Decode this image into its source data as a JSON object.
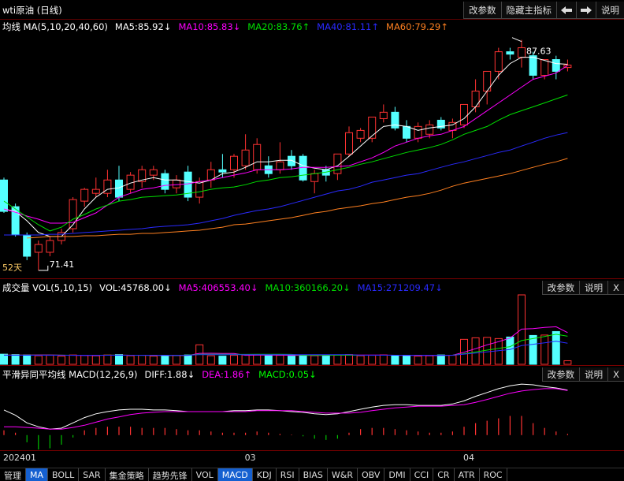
{
  "toolbar": {
    "title": "wti原油 (日线)",
    "buttons": [
      "改参数",
      "隐藏主指标"
    ],
    "help": "说明"
  },
  "chart_data": [
    {
      "type": "candlestick",
      "title": "均线 MA(5,10,20,40,60)",
      "categories": [
        "202401",
        null,
        null,
        null,
        null,
        null,
        null,
        null,
        null,
        null,
        null,
        null,
        null,
        null,
        null,
        null,
        null,
        null,
        null,
        null,
        null,
        "03",
        null,
        null,
        null,
        null,
        null,
        null,
        null,
        null,
        null,
        null,
        null,
        null,
        null,
        null,
        null,
        null,
        null,
        null,
        "04",
        null,
        null,
        null,
        null,
        null,
        null,
        null,
        null,
        null
      ],
      "open": [
        77.77,
        75.89,
        73.9,
        72.68,
        72.68,
        73.51,
        74.34,
        76.28,
        76.83,
        76.83,
        77.77,
        77.11,
        77.66,
        78.11,
        78.22,
        77.22,
        78.33,
        76.56,
        77.77,
        78.49,
        78.49,
        78.77,
        78.49,
        78.77,
        78.49,
        79.44,
        79.44,
        77.66,
        78.49,
        78.22,
        79.6,
        80.71,
        80.71,
        82.09,
        82.54,
        81.54,
        80.71,
        80.99,
        81.98,
        81.26,
        81.65,
        82.92,
        84.03,
        85.42,
        86.8,
        86.41,
        86.52,
        85.14,
        86.25,
        85.69
      ],
      "high": [
        77.94,
        76.11,
        74.07,
        73.51,
        73.79,
        74.34,
        76.56,
        77.22,
        77.94,
        78.49,
        78.77,
        78.33,
        78.77,
        78.77,
        78.49,
        78.11,
        78.77,
        77.94,
        79.05,
        79.6,
        79.6,
        80.99,
        80.71,
        79.44,
        80.43,
        79.88,
        79.6,
        78.49,
        78.77,
        79.6,
        81.54,
        81.43,
        82.2,
        83.09,
        82.92,
        81.98,
        81.82,
        81.98,
        82.2,
        82.09,
        83.09,
        84.86,
        85.42,
        87.08,
        87.08,
        87.63,
        86.8,
        86.25,
        86.52,
        86.25
      ],
      "low": [
        75.45,
        73.79,
        72.13,
        71.41,
        72.4,
        73.23,
        74.07,
        75.89,
        76.56,
        76.56,
        76.28,
        76.83,
        77.22,
        77.77,
        76.83,
        76.83,
        76.28,
        76.11,
        77.22,
        77.94,
        77.94,
        78.49,
        78.22,
        77.94,
        78.22,
        78.49,
        77.66,
        76.83,
        77.66,
        77.77,
        79.44,
        80.43,
        80.43,
        81.82,
        81.26,
        80.43,
        80.43,
        80.71,
        81.26,
        80.71,
        81.43,
        82.54,
        83.09,
        84.86,
        86.25,
        85.69,
        84.86,
        84.86,
        84.86,
        85.42
      ],
      "close": [
        75.56,
        73.9,
        72.4,
        73.23,
        73.51,
        74.07,
        76.39,
        77.11,
        77.11,
        77.77,
        76.56,
        78.11,
        78.49,
        78.49,
        77.11,
        77.77,
        76.56,
        77.66,
        78.49,
        78.33,
        79.44,
        79.88,
        80.27,
        78.22,
        79.05,
        78.77,
        77.77,
        78.22,
        78.11,
        79.6,
        81.1,
        81.26,
        82.2,
        82.54,
        81.43,
        80.71,
        81.54,
        81.65,
        81.43,
        81.82,
        83.09,
        84.03,
        85.42,
        86.8,
        86.63,
        87.08,
        85.14,
        86.25,
        85.42,
        85.86
      ],
      "up_color": "#ff3232",
      "down_color": "#54ffff",
      "ylim": [
        70.9,
        88
      ],
      "high_mark": 87.63,
      "low_mark": 71.41,
      "period_label": "52天",
      "period_color": "#ffcc66",
      "series": [
        {
          "name": "MA5:85.92↓",
          "color": "#ffffff",
          "values": [
            75.73,
            75.56,
            74.9,
            74.07,
            73.79,
            73.79,
            74.62,
            75.73,
            76.56,
            77.11,
            77.22,
            77.55,
            77.77,
            77.94,
            77.77,
            77.77,
            77.66,
            77.55,
            77.77,
            78.22,
            78.33,
            78.66,
            79.05,
            79.05,
            79.16,
            79.16,
            78.77,
            78.6,
            78.49,
            78.77,
            79.44,
            80.16,
            80.88,
            81.54,
            81.65,
            81.54,
            81.26,
            81.43,
            81.54,
            81.65,
            82.09,
            82.92,
            84.03,
            85.14,
            85.97,
            86.41,
            86.41,
            86.19,
            85.97,
            85.92
          ]
        },
        {
          "name": "MA10:85.83↓",
          "color": "#ff00ff",
          "values": [
            75.73,
            75.5,
            75.23,
            75.01,
            74.73,
            74.73,
            74.78,
            75.12,
            75.45,
            76.0,
            76.56,
            76.83,
            77.11,
            77.22,
            77.39,
            77.44,
            77.5,
            77.66,
            77.77,
            77.94,
            78.11,
            78.27,
            78.49,
            78.49,
            78.49,
            78.55,
            78.66,
            78.66,
            78.66,
            78.71,
            78.77,
            79.05,
            79.33,
            79.71,
            80.16,
            80.43,
            80.71,
            80.88,
            80.99,
            81.26,
            81.54,
            82.09,
            82.65,
            83.2,
            83.75,
            84.31,
            84.86,
            85.08,
            85.3,
            85.83
          ]
        },
        {
          "name": "MA20:83.76↑",
          "color": "#00e000",
          "values": [
            76.28,
            75.73,
            75.17,
            74.62,
            74.18,
            74.45,
            75.01,
            75.34,
            75.73,
            76.0,
            76.28,
            76.39,
            76.56,
            76.61,
            76.67,
            76.72,
            76.83,
            76.94,
            77.11,
            77.22,
            77.28,
            77.44,
            77.66,
            77.77,
            77.94,
            78.0,
            78.11,
            78.22,
            78.33,
            78.49,
            78.66,
            78.88,
            79.05,
            79.27,
            79.49,
            79.71,
            79.88,
            80.05,
            80.27,
            80.6,
            80.99,
            81.26,
            81.54,
            81.98,
            82.37,
            82.65,
            82.92,
            83.2,
            83.48,
            83.76
          ]
        },
        {
          "name": "MA40:81.11↑",
          "color": "#2a2aff",
          "values": [
            73.9,
            73.9,
            73.9,
            73.9,
            73.95,
            73.95,
            74.01,
            74.07,
            74.12,
            74.18,
            74.23,
            74.29,
            74.34,
            74.45,
            74.51,
            74.56,
            74.62,
            74.73,
            74.9,
            75.06,
            75.28,
            75.45,
            75.62,
            75.73,
            75.89,
            76.11,
            76.33,
            76.56,
            76.78,
            77.0,
            77.11,
            77.33,
            77.61,
            77.77,
            77.94,
            78.11,
            78.22,
            78.44,
            78.66,
            78.88,
            79.05,
            79.27,
            79.49,
            79.71,
            79.88,
            80.16,
            80.43,
            80.71,
            80.93,
            81.11
          ]
        },
        {
          "name": "MA60:79.29↑",
          "color": "#ff8020",
          "values": [
            null,
            null,
            73.68,
            73.73,
            73.79,
            73.79,
            73.79,
            73.84,
            73.84,
            73.9,
            73.95,
            73.95,
            74.01,
            74.01,
            74.07,
            74.12,
            74.18,
            74.23,
            74.34,
            74.45,
            74.62,
            74.67,
            74.78,
            74.9,
            75.01,
            75.12,
            75.28,
            75.45,
            75.56,
            75.73,
            75.84,
            75.95,
            76.11,
            76.22,
            76.39,
            76.56,
            76.67,
            76.83,
            77.05,
            77.33,
            77.55,
            77.72,
            77.88,
            78.05,
            78.22,
            78.44,
            78.66,
            78.88,
            79.05,
            79.29
          ]
        }
      ]
    },
    {
      "type": "volume",
      "title": "成交量 VOL(5,10,15)",
      "buttons": [
        "改参数",
        "说明",
        "X"
      ],
      "up_color": "#ff3232",
      "down_color": "#54ffff",
      "ylim": [
        0,
        900000
      ],
      "bars": {
        "name": "VOL:45768.00↓",
        "color": "#ffffff",
        "values": [
          130000,
          125000,
          120000,
          110000,
          115000,
          105000,
          120000,
          115000,
          110000,
          120000,
          125000,
          110000,
          115000,
          105000,
          110000,
          115000,
          120000,
          250000,
          110000,
          105000,
          115000,
          120000,
          125000,
          110000,
          115000,
          105000,
          120000,
          110000,
          115000,
          120000,
          125000,
          110000,
          115000,
          120000,
          110000,
          115000,
          105000,
          110000,
          120000,
          115000,
          320000,
          340000,
          345000,
          330000,
          350000,
          890000,
          370000,
          375000,
          420000,
          45768
        ]
      },
      "series": [
        {
          "name": "MA5:406553.40↓",
          "color": "#ff00ff",
          "values": [
            118000,
            118000,
            118000,
            120000,
            120000,
            117000,
            115000,
            113000,
            114000,
            116000,
            118000,
            116000,
            116000,
            114000,
            113000,
            111000,
            113000,
            141000,
            142000,
            140000,
            140000,
            115000,
            117000,
            117000,
            117000,
            115000,
            115000,
            113000,
            113000,
            118000,
            118000,
            118000,
            118000,
            118000,
            116000,
            114000,
            113000,
            112000,
            112000,
            116000,
            155000,
            200000,
            250000,
            290000,
            337000,
            451000,
            457000,
            472000,
            481000,
            406553
          ]
        },
        {
          "name": "MA10:360166.20↓",
          "color": "#00e000",
          "values": [
            117000,
            117000,
            117000,
            117000,
            117000,
            117000,
            116000,
            116000,
            116000,
            117000,
            117000,
            116000,
            115000,
            115000,
            115000,
            114000,
            116000,
            128000,
            128000,
            128000,
            127000,
            127000,
            128000,
            128000,
            128000,
            127000,
            115000,
            115000,
            115000,
            116000,
            116000,
            116000,
            116000,
            116000,
            116000,
            116000,
            116000,
            116000,
            115000,
            116000,
            136000,
            158000,
            182000,
            203000,
            227000,
            304000,
            330000,
            356000,
            385000,
            360166
          ]
        },
        {
          "name": "MA15:271209.47↓",
          "color": "#2a2aff",
          "values": [
            116000,
            116000,
            116000,
            116000,
            116000,
            116000,
            116000,
            116000,
            116000,
            116000,
            116000,
            116000,
            116000,
            116000,
            116000,
            115000,
            116000,
            124000,
            124000,
            124000,
            124000,
            124000,
            124000,
            124000,
            124000,
            124000,
            124000,
            124000,
            124000,
            124000,
            124000,
            116000,
            116000,
            116000,
            116000,
            116000,
            116000,
            116000,
            116000,
            116000,
            130000,
            145000,
            160000,
            175000,
            190000,
            240000,
            257000,
            275000,
            296000,
            271209
          ]
        }
      ]
    },
    {
      "type": "macd",
      "title": "平滑异同平均线 MACD(12,26,9)",
      "buttons": [
        "改参数",
        "说明",
        "X"
      ],
      "ylim": [
        -0.6,
        2.2
      ],
      "series": [
        {
          "name": "DIFF:1.88↓",
          "color": "#ffffff",
          "values": [
            1.05,
            0.83,
            0.51,
            0.35,
            0.25,
            0.29,
            0.51,
            0.73,
            0.89,
            0.98,
            1.05,
            1.08,
            1.08,
            1.05,
            1.05,
            1.02,
            0.98,
            0.98,
            0.98,
            0.98,
            1.02,
            1.02,
            1.05,
            1.05,
            1.02,
            0.98,
            0.95,
            0.89,
            0.86,
            0.89,
            0.98,
            1.08,
            1.17,
            1.24,
            1.27,
            1.27,
            1.24,
            1.24,
            1.24,
            1.3,
            1.43,
            1.62,
            1.78,
            1.94,
            2.06,
            2.13,
            2.1,
            2.03,
            1.97,
            1.88
          ]
        },
        {
          "name": "DEA:1.86↑",
          "color": "#ff00ff",
          "values": [
            0.35,
            0.35,
            0.32,
            0.29,
            0.25,
            0.25,
            0.32,
            0.41,
            0.54,
            0.67,
            0.76,
            0.86,
            0.92,
            0.95,
            0.98,
            0.98,
            0.98,
            0.98,
            0.98,
            0.98,
            0.98,
            0.98,
            1.02,
            1.02,
            1.02,
            1.02,
            0.98,
            0.95,
            0.92,
            0.92,
            0.92,
            0.95,
            1.02,
            1.08,
            1.14,
            1.17,
            1.21,
            1.21,
            1.21,
            1.24,
            1.27,
            1.37,
            1.49,
            1.62,
            1.75,
            1.84,
            1.9,
            1.94,
            1.94,
            1.86
          ]
        }
      ],
      "bars": {
        "name": "MACD:0.05↓",
        "color": "#00ff00",
        "up_color": "#ff3232",
        "down_color": "#00c000",
        "values": [
          0.2,
          0.1,
          -0.3,
          -0.6,
          -0.55,
          -0.4,
          -0.1,
          0.2,
          0.3,
          0.35,
          0.35,
          0.35,
          0.3,
          0.3,
          0.3,
          0.25,
          0.2,
          0.2,
          0.15,
          0.1,
          0.1,
          0.1,
          0.15,
          0.1,
          0.05,
          0.02,
          -0.05,
          -0.15,
          -0.2,
          -0.15,
          0.1,
          0.25,
          0.3,
          0.3,
          0.25,
          0.2,
          0.15,
          0.1,
          0.1,
          0.15,
          0.35,
          0.5,
          0.6,
          0.7,
          0.8,
          0.8,
          0.5,
          0.3,
          0.15,
          0.05
        ]
      }
    }
  ],
  "tabs": [
    {
      "label": "管理"
    },
    {
      "label": "MA",
      "active": true
    },
    {
      "label": "BOLL"
    },
    {
      "label": "SAR"
    },
    {
      "label": "集金策略"
    },
    {
      "label": "趋势先锋"
    },
    {
      "label": "VOL"
    },
    {
      "label": "MACD",
      "active": true
    },
    {
      "label": "KDJ"
    },
    {
      "label": "RSI"
    },
    {
      "label": "BIAS"
    },
    {
      "label": "W&R"
    },
    {
      "label": "OBV"
    },
    {
      "label": "DMI"
    },
    {
      "label": "CCI"
    },
    {
      "label": "CR"
    },
    {
      "label": "ATR"
    },
    {
      "label": "ROC"
    }
  ]
}
